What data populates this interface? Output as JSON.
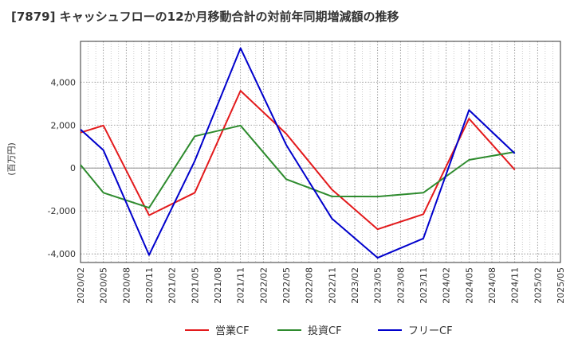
{
  "title": "[7879]  キャッシュフローの12か月移動合計の対前年同期増減額の推移",
  "chart_data": {
    "type": "line",
    "title": "[7879]  キャッシュフローの12か月移動合計の対前年同期増減額の推移",
    "xlabel": "",
    "ylabel": "(百万円)",
    "categories": [
      "2020/02",
      "2020/05",
      "2020/08",
      "2020/11",
      "2021/02",
      "2021/05",
      "2021/08",
      "2021/11",
      "2022/02",
      "2022/05",
      "2022/08",
      "2022/11",
      "2023/02",
      "2023/05",
      "2023/08",
      "2023/11",
      "2024/02",
      "2024/05",
      "2024/08",
      "2024/11",
      "2025/02",
      "2025/05"
    ],
    "ylim": [
      -4400,
      5900
    ],
    "yticks": [
      -4000,
      -2000,
      0,
      2000,
      4000
    ],
    "ytick_labels": [
      "-4,000",
      "-2,000",
      "0",
      "2,000",
      "4,000"
    ],
    "grid": true,
    "legend": "bottom",
    "series": [
      {
        "name": "営業CF",
        "color": "#e31a1c",
        "values": [
          1650,
          1980,
          null,
          -2200,
          null,
          -1150,
          null,
          3600,
          null,
          1600,
          null,
          -1000,
          null,
          -2850,
          null,
          -2150,
          null,
          2300,
          null,
          -80,
          null,
          null
        ]
      },
      {
        "name": "投資CF",
        "color": "#2e8b2e",
        "values": [
          150,
          -1150,
          null,
          -1850,
          null,
          1480,
          null,
          1980,
          null,
          -520,
          null,
          -1320,
          null,
          -1330,
          null,
          -1150,
          null,
          380,
          null,
          750,
          null,
          null
        ]
      },
      {
        "name": "フリーCF",
        "color": "#0000cc",
        "values": [
          1800,
          830,
          null,
          -4050,
          null,
          330,
          null,
          5580,
          null,
          1080,
          null,
          -2350,
          null,
          -4180,
          null,
          -3280,
          null,
          2700,
          null,
          680,
          null,
          null
        ]
      }
    ]
  }
}
